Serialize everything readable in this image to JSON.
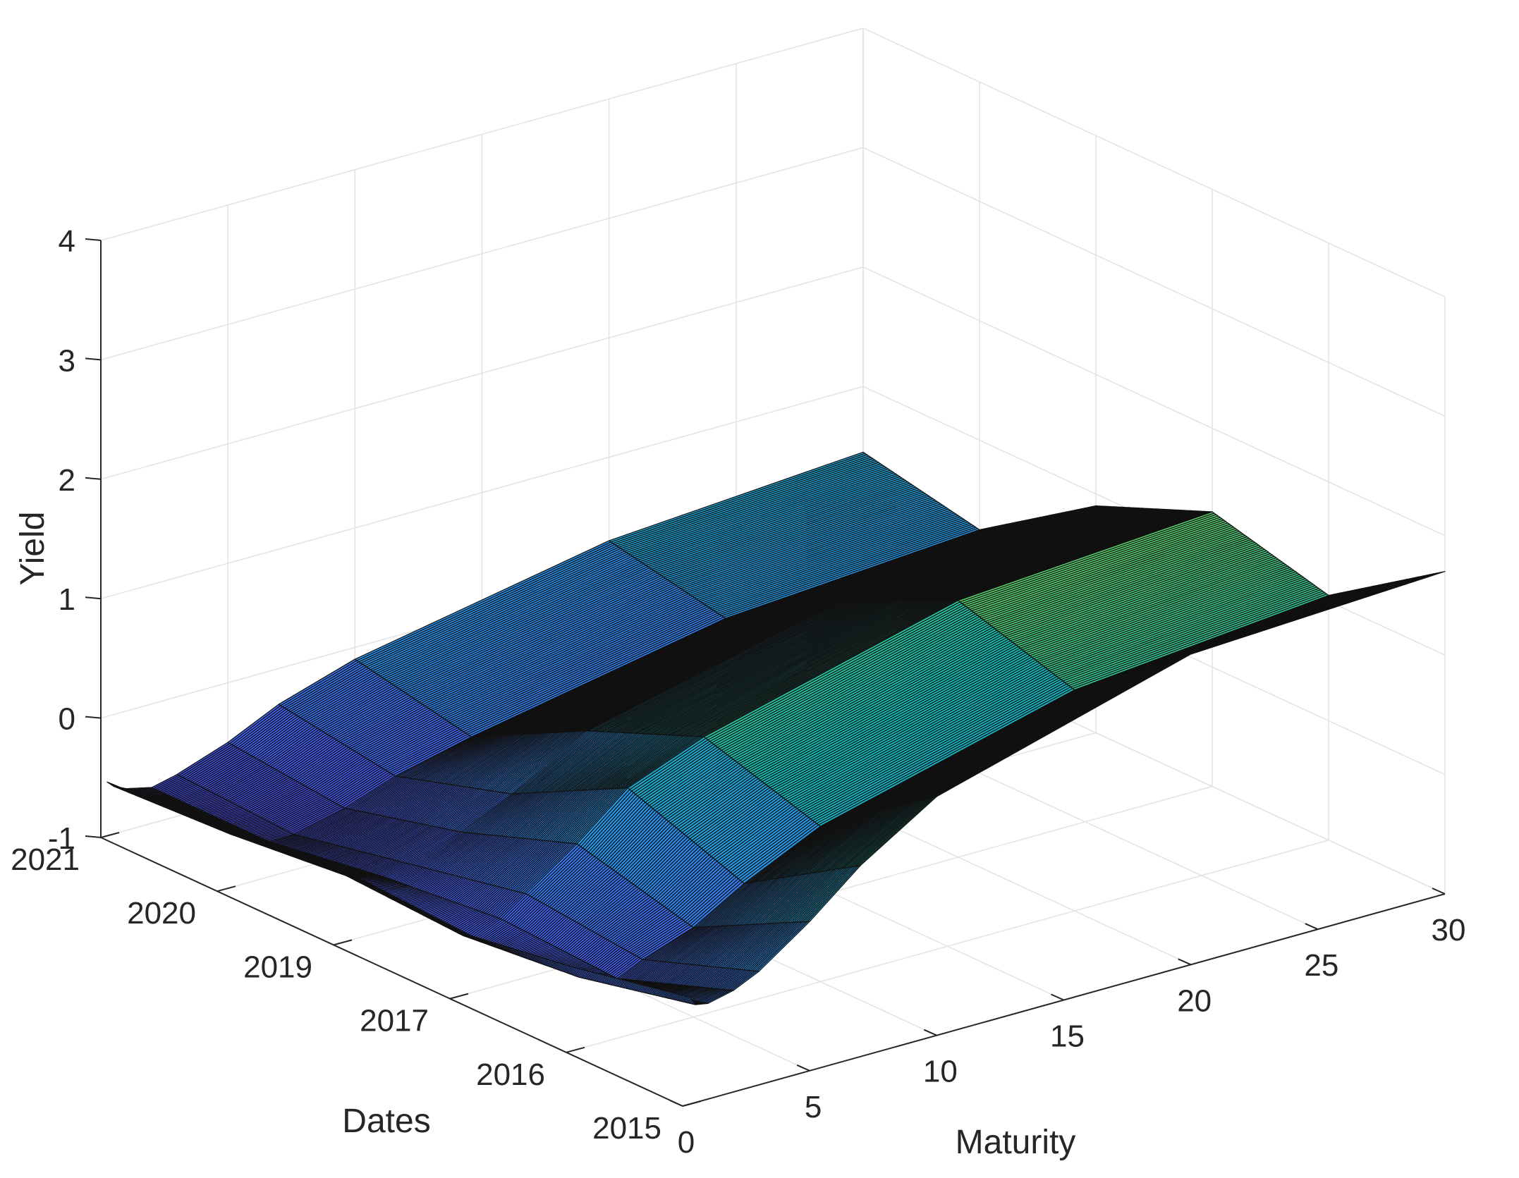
{
  "chart_data": {
    "type": "surface3d",
    "xlabel": "Maturity",
    "ylabel": "Dates",
    "zlabel": "Yield",
    "x_ticks": [
      "0",
      "5",
      "10",
      "15",
      "20",
      "25",
      "30"
    ],
    "y_ticks": [
      "2015",
      "2016",
      "2017",
      "2019",
      "2020",
      "2021"
    ],
    "z_ticks": [
      "-1",
      "0",
      "1",
      "2",
      "3",
      "4"
    ],
    "xlim": [
      0,
      30
    ],
    "ylim": [
      2015,
      2021
    ],
    "zlim": [
      -1,
      4
    ],
    "grid": true,
    "colormap": [
      "#3e26a8",
      "#4361f6",
      "#2797eb",
      "#13beb8",
      "#64d462",
      "#c5be29",
      "#f7ba3d",
      "#f9fb15"
    ],
    "maturities": [
      0.25,
      0.5,
      1,
      2,
      3,
      5,
      7,
      10,
      20,
      30
    ],
    "series": [
      {
        "name": "2015",
        "values": [
          -0.1,
          -0.18,
          -0.2,
          -0.15,
          -0.05,
          0.25,
          0.6,
          1.0,
          1.6,
          1.7
        ]
      },
      {
        "name": "2016",
        "values": [
          -0.3,
          -0.4,
          -0.45,
          -0.5,
          -0.4,
          -0.25,
          0.0,
          0.3,
          0.85,
          1.05
        ]
      },
      {
        "name": "2017",
        "values": [
          -0.45,
          -0.5,
          -0.55,
          -0.45,
          -0.3,
          0.0,
          0.35,
          0.6,
          1.15,
          1.3
        ]
      },
      {
        "name": "2019",
        "values": [
          -0.4,
          -0.45,
          -0.5,
          -0.55,
          -0.5,
          -0.35,
          -0.15,
          0.2,
          0.7,
          0.9
        ]
      },
      {
        "name": "2020",
        "values": [
          -0.5,
          -0.55,
          -0.6,
          -0.7,
          -0.7,
          -0.6,
          -0.45,
          -0.3,
          0.1,
          0.25
        ]
      },
      {
        "name": "2021",
        "values": [
          -0.55,
          -0.6,
          -0.65,
          -0.7,
          -0.65,
          -0.5,
          -0.3,
          -0.1,
          0.3,
          0.45
        ]
      }
    ]
  }
}
